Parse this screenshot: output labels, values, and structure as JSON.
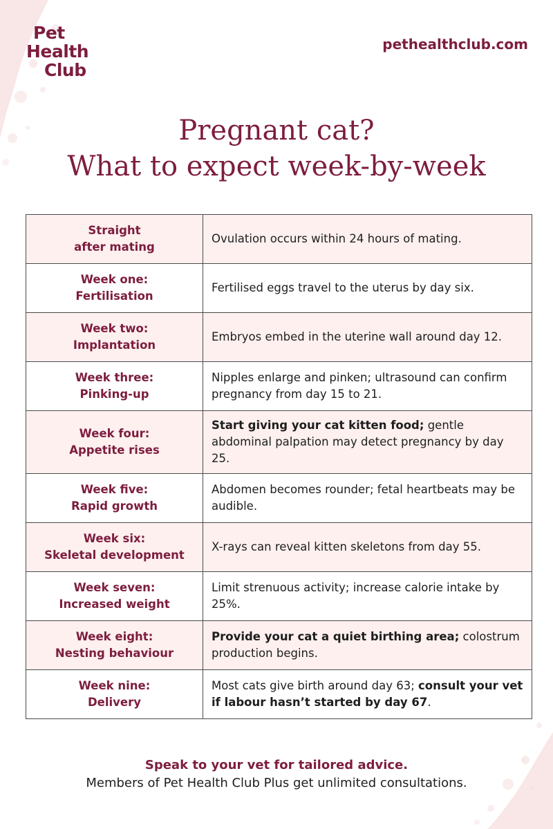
{
  "brand": {
    "logo_line1": "Pet",
    "logo_line2": "Health",
    "logo_line3": "Club",
    "website": "pethealthclub.com",
    "color_primary": "#7d1d3f",
    "color_row_shade": "#fdf0ef"
  },
  "title": {
    "line1": "Pregnant cat?",
    "line2": "What to expect week-by-week"
  },
  "timeline": [
    {
      "week_line1": "Straight",
      "week_line2": "after mating",
      "shaded": true,
      "desc": [
        {
          "text": "Ovulation occurs within 24 hours of mating.",
          "bold": false
        }
      ]
    },
    {
      "week_line1": "Week one:",
      "week_line2": "Fertilisation",
      "shaded": false,
      "desc": [
        {
          "text": "Fertilised eggs travel to the uterus by day six.",
          "bold": false
        }
      ]
    },
    {
      "week_line1": "Week two:",
      "week_line2": "Implantation",
      "shaded": true,
      "desc": [
        {
          "text": "Embryos embed in the uterine wall around day 12.",
          "bold": false
        }
      ]
    },
    {
      "week_line1": "Week three:",
      "week_line2": "Pinking-up",
      "shaded": false,
      "desc": [
        {
          "text": "Nipples enlarge and pinken; ultrasound can confirm pregnancy from day 15 to 21.",
          "bold": false
        }
      ]
    },
    {
      "week_line1": "Week four:",
      "week_line2": "Appetite rises",
      "shaded": true,
      "desc": [
        {
          "text": "Start giving your cat kitten food;",
          "bold": true
        },
        {
          "text": " gentle abdominal palpation may detect pregnancy by day 25.",
          "bold": false
        }
      ]
    },
    {
      "week_line1": "Week five:",
      "week_line2": "Rapid growth",
      "shaded": false,
      "desc": [
        {
          "text": "Abdomen becomes rounder; fetal heartbeats may be audible.",
          "bold": false
        }
      ]
    },
    {
      "week_line1": "Week six:",
      "week_line2": "Skeletal development",
      "shaded": true,
      "desc": [
        {
          "text": "X-rays can reveal kitten skeletons from day 55.",
          "bold": false
        }
      ]
    },
    {
      "week_line1": "Week seven:",
      "week_line2": "Increased weight",
      "shaded": false,
      "desc": [
        {
          "text": "Limit strenuous activity; increase calorie intake by 25%.",
          "bold": false
        }
      ]
    },
    {
      "week_line1": "Week eight:",
      "week_line2": "Nesting behaviour",
      "shaded": true,
      "desc": [
        {
          "text": "Provide your cat a quiet birthing area;",
          "bold": true
        },
        {
          "text": " colostrum production begins.",
          "bold": false
        }
      ]
    },
    {
      "week_line1": "Week nine:",
      "week_line2": "Delivery",
      "shaded": false,
      "desc": [
        {
          "text": "Most cats give birth around day 63; ",
          "bold": false
        },
        {
          "text": "consult your vet if labour hasn’t started by day 67",
          "bold": true
        },
        {
          "text": ".",
          "bold": false
        }
      ]
    }
  ],
  "footer": {
    "line1": "Speak to your vet for tailored advice.",
    "line2": "Members of Pet Health Club Plus get unlimited consultations."
  }
}
